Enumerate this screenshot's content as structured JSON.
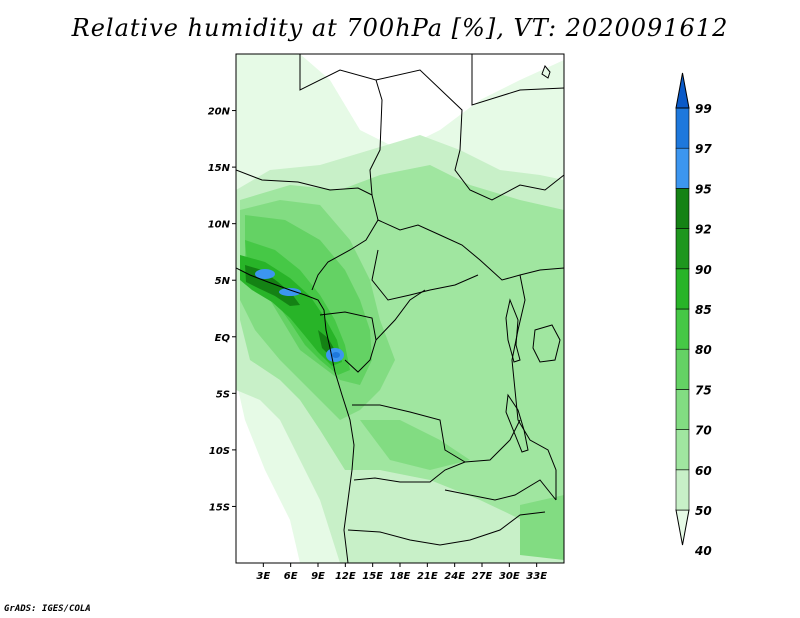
{
  "title": "Relative humidity at 700hPa [%], VT: 2020091612",
  "credit": "GrADS: IGES/COLA",
  "map": {
    "lon_range": [
      0,
      36
    ],
    "lat_range": [
      -20,
      25
    ],
    "lon_ticks": [
      "3E",
      "6E",
      "9E",
      "12E",
      "15E",
      "18E",
      "21E",
      "24E",
      "27E",
      "30E",
      "33E"
    ],
    "lat_ticks": [
      "20N",
      "15N",
      "10N",
      "5N",
      "EQ",
      "5S",
      "10S",
      "15S"
    ],
    "lat_tick_values": [
      20,
      15,
      10,
      5,
      0,
      -5,
      -10,
      -15
    ]
  },
  "colorbar": {
    "levels": [
      "99",
      "97",
      "95",
      "92",
      "90",
      "85",
      "80",
      "75",
      "70",
      "60",
      "50",
      "40"
    ],
    "level_values": [
      99,
      97,
      95,
      92,
      90,
      85,
      80,
      75,
      70,
      60,
      50,
      40
    ],
    "colors_bottom_to_top": [
      "#e6fae6",
      "#c8f0c8",
      "#a0e6a0",
      "#82dc82",
      "#64d264",
      "#46c846",
      "#28b428",
      "#1e961e",
      "#148214",
      "#3c96f0",
      "#1e78dc",
      "#0a5ac8"
    ]
  }
}
